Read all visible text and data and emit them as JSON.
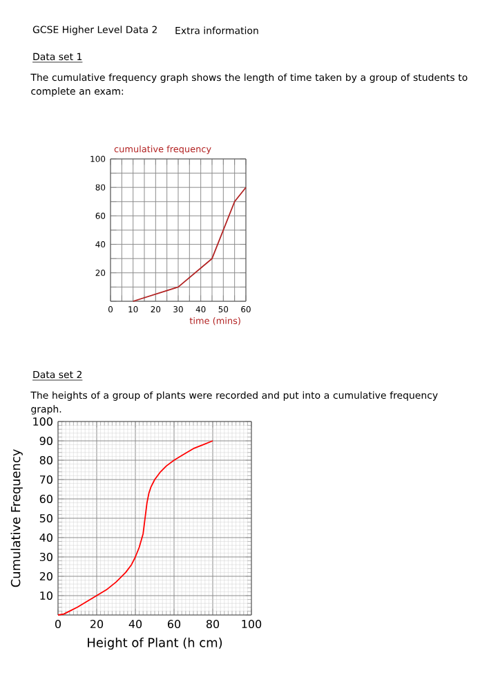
{
  "chart_data": [
    {
      "type": "line",
      "title": "Data set 1",
      "subtitle": "The cumulative frequency graph shows the length of time taken by a group of students to complete an exam:",
      "annotations": [
        "GCSE Higher Level Data 2",
        "Extra information"
      ],
      "xlabel": "time (mins)",
      "ylabel": "cumulative frequency",
      "x": [
        10,
        30,
        45,
        55,
        60
      ],
      "series": [
        {
          "color": "#b22222",
          "values": [
            0,
            10,
            30,
            70,
            80
          ]
        }
      ],
      "xlim": [
        0,
        60
      ],
      "ylim": [
        0,
        100
      ],
      "xticks": [
        0,
        {
          "value": 5,
          "label": null
        },
        10,
        {
          "value": 15,
          "label": null
        },
        20,
        {
          "value": 25,
          "label": null
        },
        30,
        {
          "value": 35,
          "label": null
        },
        40,
        {
          "value": 45,
          "label": null
        },
        50,
        {
          "value": 55,
          "label": null
        },
        60
      ],
      "yticks": [
        {
          "value": 0,
          "label": null
        },
        {
          "value": 10,
          "label": null
        },
        20,
        {
          "value": 30,
          "label": null
        },
        40,
        {
          "value": 50,
          "label": null
        },
        60,
        {
          "value": 70,
          "label": null
        },
        80,
        {
          "value": 90,
          "label": null
        },
        100
      ],
      "grid": true
    },
    {
      "type": "line",
      "title": "Data set 2",
      "subtitle": "The heights of a group of plants were recorded and put into a cumulative frequency graph.",
      "xlabel": "Height of Plant (h cm)",
      "ylabel": "Cumulative Frequency",
      "x": [
        0,
        3,
        6,
        10,
        15,
        20,
        25,
        30,
        35,
        38,
        40,
        42,
        44,
        45,
        46,
        47,
        48,
        50,
        53,
        56,
        60,
        65,
        70,
        75,
        80
      ],
      "series": [
        {
          "color": "#ff0000",
          "values": [
            0,
            0.5,
            2,
            4,
            7,
            10,
            13,
            17,
            22,
            26,
            30,
            35,
            42,
            50,
            58,
            63,
            66,
            70,
            74,
            77,
            80,
            83,
            86,
            88,
            90
          ]
        }
      ],
      "xlim": [
        0,
        100
      ],
      "ylim": [
        0,
        100
      ],
      "xticks": [
        0,
        20,
        40,
        60,
        80,
        100
      ],
      "yticks": [
        {
          "value": 0,
          "label": null
        },
        10,
        20,
        30,
        40,
        50,
        60,
        70,
        80,
        90,
        100
      ],
      "grid": true
    }
  ]
}
